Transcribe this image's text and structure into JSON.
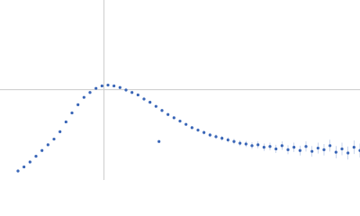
{
  "chart_data": {
    "type": "scatter",
    "xlim": [
      0,
      6
    ],
    "ylim": [
      0,
      2.2
    ],
    "guide_x": 1.732,
    "guide_y": 1.104,
    "series": [
      {
        "color": "#3a66b7",
        "x": [
          0.3,
          0.4,
          0.5,
          0.6,
          0.7,
          0.8,
          0.9,
          1.0,
          1.1,
          1.2,
          1.3,
          1.4,
          1.5,
          1.6,
          1.7,
          1.8,
          1.9,
          2.0,
          2.1,
          2.2,
          2.3,
          2.4,
          2.5,
          2.6,
          2.7,
          2.8,
          2.9,
          3.0,
          3.1,
          3.2,
          3.3,
          3.4,
          3.5,
          3.6,
          3.7,
          3.8,
          3.9,
          4.0,
          4.1,
          4.2,
          4.3,
          4.4,
          4.5,
          4.6,
          4.7,
          4.8,
          4.9,
          5.0,
          5.1,
          5.2,
          5.3,
          5.4,
          5.5,
          5.6,
          5.7,
          5.8,
          5.9,
          6.0,
          2.65
        ],
        "values": [
          0.11,
          0.16,
          0.22,
          0.29,
          0.36,
          0.43,
          0.5,
          0.59,
          0.71,
          0.82,
          0.92,
          1.01,
          1.07,
          1.12,
          1.15,
          1.16,
          1.15,
          1.13,
          1.1,
          1.07,
          1.04,
          0.99,
          0.95,
          0.9,
          0.85,
          0.8,
          0.76,
          0.72,
          0.68,
          0.64,
          0.61,
          0.58,
          0.55,
          0.53,
          0.51,
          0.49,
          0.47,
          0.45,
          0.44,
          0.42,
          0.43,
          0.4,
          0.41,
          0.38,
          0.42,
          0.37,
          0.4,
          0.36,
          0.41,
          0.35,
          0.39,
          0.37,
          0.42,
          0.34,
          0.38,
          0.33,
          0.4,
          0.36,
          0.47
        ],
        "errors": [
          0.005,
          0.005,
          0.005,
          0.005,
          0.005,
          0.005,
          0.005,
          0.005,
          0.006,
          0.006,
          0.006,
          0.007,
          0.007,
          0.007,
          0.008,
          0.008,
          0.008,
          0.009,
          0.009,
          0.01,
          0.01,
          0.011,
          0.012,
          0.013,
          0.014,
          0.015,
          0.016,
          0.017,
          0.018,
          0.02,
          0.021,
          0.023,
          0.025,
          0.027,
          0.029,
          0.031,
          0.033,
          0.035,
          0.037,
          0.04,
          0.042,
          0.045,
          0.047,
          0.05,
          0.052,
          0.055,
          0.057,
          0.06,
          0.062,
          0.065,
          0.067,
          0.07,
          0.072,
          0.075,
          0.077,
          0.08,
          0.082,
          0.085,
          0.015
        ]
      }
    ]
  }
}
